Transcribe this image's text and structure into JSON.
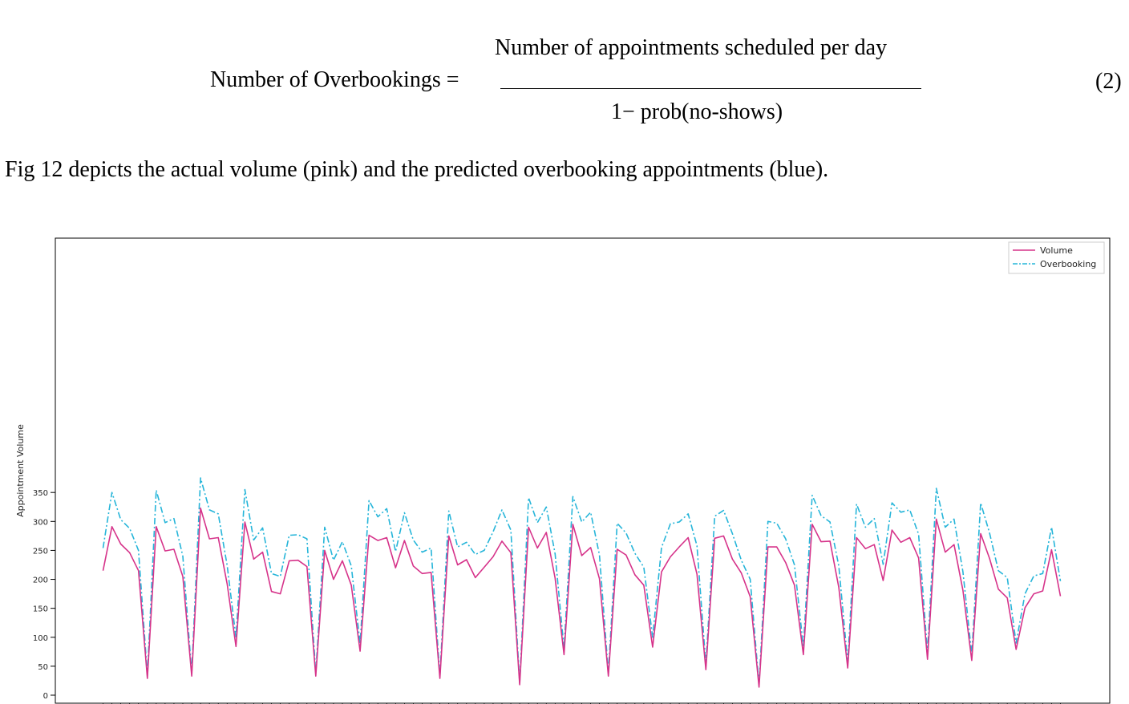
{
  "equation": {
    "lhs": "Number of Overbookings =",
    "numerator": "Number of appointments scheduled per day",
    "denominator": "1− prob(no-shows)",
    "number": "(2)"
  },
  "caption": "Fig 12 depicts the actual volume (pink) and the predicted overbooking appointments (blue).",
  "chart_data": {
    "type": "line",
    "ylabel": "Appointment Volume",
    "ylim": [
      0,
      380
    ],
    "yticks": [
      0,
      50,
      100,
      150,
      200,
      250,
      300,
      350
    ],
    "legend_position": "top-right",
    "series": [
      {
        "name": "Volume",
        "color": "#d6338a",
        "style": "solid",
        "values": [
          215,
          291,
          261,
          246,
          215,
          29,
          291,
          249,
          252,
          205,
          33,
          323,
          270,
          272,
          192,
          84,
          299,
          235,
          247,
          179,
          175,
          232,
          233,
          222,
          33,
          250,
          200,
          232,
          190,
          76,
          276,
          267,
          272,
          220,
          267,
          223,
          210,
          212,
          29,
          275,
          225,
          234,
          203,
          221,
          239,
          266,
          246,
          18,
          290,
          254,
          281,
          202,
          70,
          295,
          241,
          255,
          201,
          33,
          252,
          242,
          208,
          190,
          83,
          213,
          239,
          256,
          272,
          209,
          44,
          271,
          275,
          235,
          211,
          170,
          14,
          256,
          256,
          229,
          190,
          70,
          295,
          265,
          266,
          186,
          47,
          272,
          253,
          260,
          198,
          285,
          264,
          272,
          237,
          62,
          304,
          247,
          260,
          181,
          60,
          279,
          236,
          183,
          168,
          79,
          151,
          175,
          180,
          251,
          171
        ]
      },
      {
        "name": "Overbooking",
        "color": "#26b5d9",
        "style": "dashdot",
        "values": [
          254,
          350,
          303,
          288,
          250,
          34,
          354,
          298,
          305,
          240,
          38,
          375,
          320,
          313,
          224,
          99,
          355,
          268,
          289,
          210,
          205,
          276,
          277,
          270,
          38,
          290,
          233,
          265,
          223,
          89,
          336,
          308,
          322,
          248,
          315,
          268,
          247,
          254,
          33,
          318,
          256,
          264,
          243,
          250,
          282,
          320,
          285,
          21,
          341,
          298,
          325,
          244,
          80,
          343,
          299,
          316,
          242,
          38,
          297,
          280,
          245,
          221,
          100,
          255,
          296,
          299,
          313,
          258,
          52,
          309,
          319,
          279,
          233,
          200,
          18,
          300,
          297,
          270,
          225,
          83,
          345,
          310,
          299,
          223,
          56,
          330,
          290,
          305,
          226,
          332,
          316,
          320,
          278,
          73,
          357,
          290,
          304,
          213,
          70,
          332,
          280,
          215,
          203,
          90,
          175,
          206,
          210,
          290,
          197
        ]
      }
    ]
  }
}
